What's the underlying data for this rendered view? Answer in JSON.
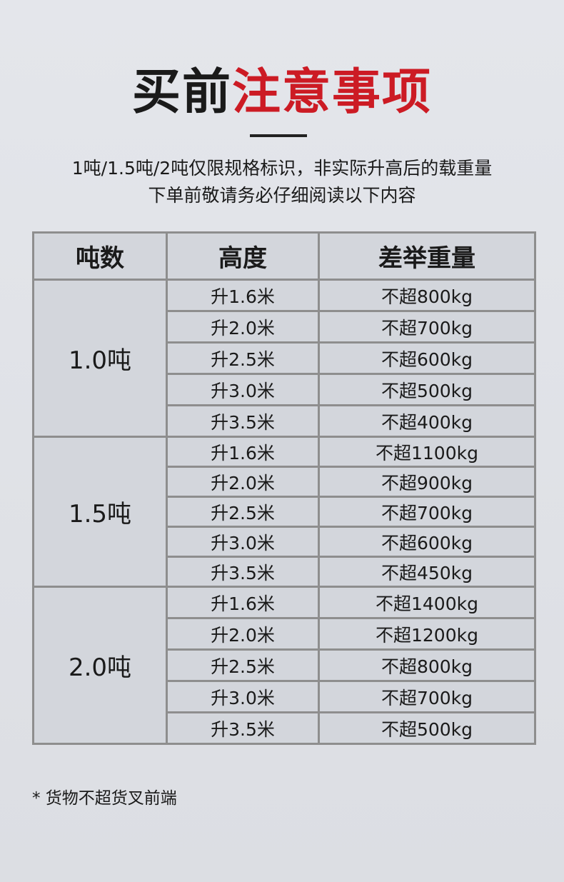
{
  "title": {
    "black": "买前",
    "red": "注意事项"
  },
  "subtitle": [
    "1吨/1.5吨/2吨仅限规格标识，非实际升高后的载重量",
    "下单前敬请务必仔细阅读以下内容"
  ],
  "colors": {
    "accent": "#cc1b24",
    "border": "#8e8e8e",
    "cell": "#d3d6dc"
  },
  "table": {
    "headers": [
      "吨数",
      "高度",
      "差举重量"
    ],
    "groups": [
      {
        "ton": "1.0吨",
        "rows": [
          [
            "升1.6米",
            "不超800kg"
          ],
          [
            "升2.0米",
            "不超700kg"
          ],
          [
            "升2.5米",
            "不超600kg"
          ],
          [
            "升3.0米",
            "不超500kg"
          ],
          [
            "升3.5米",
            "不超400kg"
          ]
        ]
      },
      {
        "ton": "1.5吨",
        "rows": [
          [
            "升1.6米",
            "不超1100kg"
          ],
          [
            "升2.0米",
            "不超900kg"
          ],
          [
            "升2.5米",
            "不超700kg"
          ],
          [
            "升3.0米",
            "不超600kg"
          ],
          [
            "升3.5米",
            "不超450kg"
          ]
        ]
      },
      {
        "ton": "2.0吨",
        "rows": [
          [
            "升1.6米",
            "不超1400kg"
          ],
          [
            "升2.0米",
            "不超1200kg"
          ],
          [
            "升2.5米",
            "不超800kg"
          ],
          [
            "升3.0米",
            "不超700kg"
          ],
          [
            "升3.5米",
            "不超500kg"
          ]
        ]
      }
    ]
  },
  "note": "* 货物不超货叉前端"
}
